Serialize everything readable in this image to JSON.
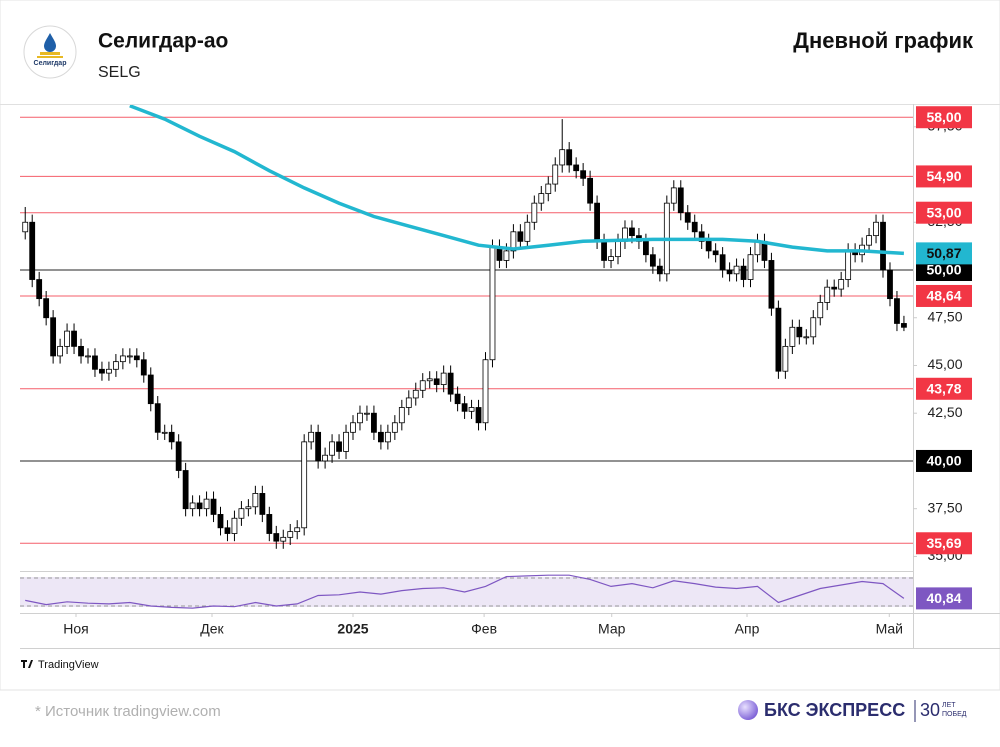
{
  "header": {
    "logo_text": "Селигдар",
    "title": "Селигдар-ао",
    "ticker": "SELG",
    "chart_label": "Дневной график"
  },
  "chart_data": {
    "type": "candlestick",
    "xlim": [
      -0.75,
      127.3
    ],
    "ylim": [
      34.29,
      58.64
    ],
    "yticks": [
      {
        "value": 35,
        "label": "35,00"
      },
      {
        "value": 37.5,
        "label": "37,50"
      },
      {
        "value": 42.5,
        "label": "42,50"
      },
      {
        "value": 45,
        "label": "45,00"
      },
      {
        "value": 47.5,
        "label": "47,50"
      },
      {
        "value": 52.5,
        "label": "52,50"
      },
      {
        "value": 57.5,
        "label": "57,50"
      }
    ],
    "xticks": [
      {
        "value": 7.28,
        "label": "Ноя"
      },
      {
        "value": 26.78,
        "label": "Дек"
      },
      {
        "value": 47.0,
        "label": "2025"
      },
      {
        "value": 65.8,
        "label": "Фев"
      },
      {
        "value": 84.1,
        "label": "Мар"
      },
      {
        "value": 103.5,
        "label": "Апр"
      },
      {
        "value": 123.9,
        "label": "Май"
      }
    ],
    "candles": {
      "up_color": "#ffffff",
      "down_color": "#000000",
      "x": [
        0,
        1,
        2,
        3,
        4,
        5,
        6,
        7,
        8,
        9,
        10,
        11,
        12,
        13,
        14,
        15,
        16,
        17,
        18,
        19,
        20,
        21,
        22,
        23,
        24,
        25,
        26,
        27,
        28,
        29,
        30,
        31,
        32,
        33,
        34,
        35,
        36,
        37,
        38,
        39,
        40,
        41,
        42,
        43,
        44,
        45,
        46,
        47,
        48,
        49,
        50,
        51,
        52,
        53,
        54,
        55,
        56,
        57,
        58,
        59,
        60,
        61,
        62,
        63,
        64,
        65,
        66,
        67,
        68,
        69,
        70,
        71,
        72,
        73,
        74,
        75,
        76,
        77,
        78,
        79,
        80,
        81,
        82,
        83,
        84,
        85,
        86,
        87,
        88,
        89,
        90,
        91,
        92,
        93,
        94,
        95,
        96,
        97,
        98,
        99,
        100,
        101,
        102,
        103,
        104,
        105,
        106,
        107,
        108,
        109,
        110,
        111,
        112,
        113,
        114,
        115,
        116,
        117,
        118,
        119,
        120,
        121,
        122,
        123,
        124,
        125,
        126
      ],
      "open": [
        52.0,
        52.5,
        49.5,
        48.5,
        47.5,
        45.5,
        46.0,
        46.8,
        46.0,
        45.5,
        45.5,
        44.8,
        44.6,
        44.8,
        45.2,
        45.5,
        45.5,
        45.3,
        44.5,
        43.0,
        41.5,
        41.5,
        41.0,
        39.5,
        37.5,
        37.8,
        37.5,
        38.0,
        37.2,
        36.5,
        36.2,
        37.0,
        37.5,
        37.6,
        38.3,
        37.2,
        36.2,
        35.8,
        36.0,
        36.3,
        36.5,
        41.0,
        41.5,
        40.0,
        40.3,
        41.0,
        40.5,
        41.5,
        42.0,
        42.5,
        42.5,
        41.5,
        41.0,
        41.5,
        42.0,
        42.8,
        43.3,
        43.7,
        44.2,
        44.3,
        44.0,
        44.6,
        43.5,
        43.0,
        42.6,
        42.8,
        42.0,
        45.3,
        51.2,
        50.5,
        51.0,
        52.0,
        51.5,
        52.5,
        53.5,
        54.0,
        54.5,
        55.5,
        56.3,
        55.5,
        55.2,
        54.8,
        53.5,
        51.5,
        50.5,
        50.7,
        51.5,
        52.2,
        51.8,
        51.5,
        50.8,
        50.2,
        49.8,
        53.5,
        54.3,
        53.0,
        52.5,
        52.0,
        51.5,
        51.0,
        50.8,
        50.0,
        49.8,
        50.2,
        49.5,
        50.8,
        51.5,
        50.5,
        48.0,
        44.7,
        46.0,
        47.0,
        46.5,
        46.5,
        47.5,
        48.3,
        49.1,
        49.0,
        49.5,
        51.0,
        50.8,
        51.3,
        51.8,
        52.5,
        50.0,
        48.5,
        47.2
      ],
      "high": [
        53.3,
        52.9,
        49.9,
        48.9,
        47.9,
        46.4,
        47.2,
        47.2,
        46.4,
        45.9,
        45.9,
        45.2,
        45.2,
        45.6,
        45.9,
        45.9,
        45.9,
        45.7,
        44.9,
        43.4,
        41.9,
        41.9,
        41.4,
        39.9,
        38.2,
        38.2,
        38.4,
        38.4,
        37.6,
        36.9,
        37.4,
        37.9,
        38.0,
        38.7,
        38.7,
        37.6,
        36.6,
        36.4,
        36.7,
        36.9,
        41.4,
        41.9,
        41.9,
        40.7,
        41.4,
        41.4,
        41.9,
        42.4,
        42.9,
        42.9,
        42.9,
        41.9,
        41.9,
        42.4,
        43.2,
        43.7,
        44.1,
        44.6,
        44.7,
        44.7,
        45.0,
        45.0,
        43.9,
        43.4,
        43.2,
        43.2,
        45.7,
        51.6,
        51.6,
        51.4,
        52.4,
        52.4,
        52.9,
        53.9,
        54.4,
        54.9,
        55.9,
        57.9,
        56.7,
        55.9,
        55.6,
        55.2,
        53.9,
        51.9,
        51.1,
        51.9,
        52.6,
        52.6,
        52.2,
        51.9,
        51.2,
        50.6,
        53.9,
        54.7,
        54.7,
        53.4,
        52.9,
        52.4,
        51.9,
        51.4,
        51.2,
        50.4,
        50.6,
        50.6,
        51.2,
        51.9,
        51.9,
        50.9,
        48.4,
        46.4,
        47.4,
        47.4,
        46.9,
        47.9,
        48.7,
        49.5,
        49.5,
        49.9,
        51.4,
        51.4,
        51.7,
        52.2,
        52.9,
        52.9,
        50.4,
        48.9,
        47.6
      ],
      "low": [
        51.6,
        49.1,
        48.1,
        47.1,
        45.1,
        45.1,
        45.6,
        45.6,
        45.1,
        45.1,
        44.4,
        44.2,
        44.2,
        44.4,
        44.8,
        45.1,
        44.9,
        44.1,
        42.6,
        41.1,
        41.1,
        40.6,
        39.1,
        37.1,
        37.1,
        37.1,
        37.1,
        36.8,
        36.1,
        35.8,
        35.8,
        36.6,
        37.1,
        37.2,
        36.8,
        35.8,
        35.4,
        35.4,
        35.6,
        35.9,
        36.1,
        40.6,
        39.6,
        39.6,
        39.9,
        40.1,
        40.1,
        41.1,
        41.6,
        42.1,
        41.1,
        40.6,
        40.6,
        41.1,
        41.6,
        42.4,
        42.9,
        43.3,
        43.8,
        43.6,
        43.6,
        43.1,
        42.6,
        42.2,
        42.2,
        41.6,
        41.6,
        44.9,
        50.1,
        50.1,
        50.6,
        51.1,
        51.1,
        52.1,
        53.1,
        53.6,
        54.1,
        55.1,
        55.1,
        54.8,
        54.4,
        53.1,
        51.1,
        50.1,
        50.1,
        50.3,
        51.1,
        51.4,
        51.1,
        50.4,
        49.8,
        49.4,
        49.4,
        53.1,
        52.6,
        52.1,
        51.6,
        51.1,
        50.6,
        50.4,
        49.6,
        49.4,
        49.4,
        49.1,
        49.1,
        50.4,
        50.1,
        47.6,
        44.3,
        44.3,
        45.6,
        46.1,
        46.1,
        46.1,
        47.1,
        47.9,
        48.6,
        48.6,
        49.1,
        50.4,
        50.4,
        50.9,
        51.4,
        49.6,
        48.1,
        46.8,
        46.8
      ],
      "close": [
        52.5,
        49.5,
        48.5,
        47.5,
        45.5,
        46.0,
        46.8,
        46.0,
        45.5,
        45.5,
        44.8,
        44.6,
        44.8,
        45.2,
        45.5,
        45.5,
        45.3,
        44.5,
        43.0,
        41.5,
        41.5,
        41.0,
        39.5,
        37.5,
        37.8,
        37.5,
        38.0,
        37.2,
        36.5,
        36.2,
        37.0,
        37.5,
        37.6,
        38.3,
        37.2,
        36.2,
        35.8,
        36.0,
        36.3,
        36.5,
        41.0,
        41.5,
        40.0,
        40.3,
        41.0,
        40.5,
        41.5,
        42.0,
        42.5,
        42.5,
        41.5,
        41.0,
        41.5,
        42.0,
        42.8,
        43.3,
        43.7,
        44.2,
        44.3,
        44.0,
        44.6,
        43.5,
        43.0,
        42.6,
        42.8,
        42.0,
        45.3,
        51.2,
        50.5,
        51.0,
        52.0,
        51.5,
        52.5,
        53.5,
        54.0,
        54.5,
        55.5,
        56.3,
        55.5,
        55.2,
        54.8,
        53.5,
        51.5,
        50.5,
        50.7,
        51.5,
        52.2,
        51.8,
        51.5,
        50.8,
        50.2,
        49.8,
        53.5,
        54.3,
        53.0,
        52.5,
        52.0,
        51.5,
        51.0,
        50.8,
        50.0,
        49.8,
        50.2,
        49.5,
        50.8,
        51.5,
        50.5,
        48.0,
        44.7,
        46.0,
        47.0,
        46.5,
        46.5,
        47.5,
        48.3,
        49.1,
        49.0,
        49.5,
        51.0,
        50.8,
        51.3,
        51.8,
        52.5,
        50.0,
        48.5,
        47.2,
        47.0
      ]
    },
    "ma": {
      "color": "#22b7d0",
      "x": [
        15,
        20,
        25,
        30,
        35,
        40,
        45,
        50,
        55,
        60,
        65,
        70,
        75,
        80,
        90,
        100,
        105,
        110,
        115,
        120,
        126
      ],
      "values": [
        58.6,
        57.9,
        57.0,
        56.2,
        55.2,
        54.3,
        53.5,
        52.8,
        52.3,
        51.8,
        51.3,
        51.1,
        51.3,
        51.5,
        51.6,
        51.6,
        51.5,
        51.2,
        51.0,
        51.0,
        50.87
      ],
      "last_label": "50,87"
    },
    "levels": [
      {
        "value": 58,
        "label": "58,00",
        "color": "#f23645"
      },
      {
        "value": 54.9,
        "label": "54,90",
        "color": "#f23645"
      },
      {
        "value": 53,
        "label": "53,00",
        "color": "#f23645"
      },
      {
        "value": 50,
        "label": "50,00",
        "color": "#000000"
      },
      {
        "value": 48.64,
        "label": "48,64",
        "color": "#f23645"
      },
      {
        "value": 43.78,
        "label": "43,78",
        "color": "#f23645"
      },
      {
        "value": 40,
        "label": "40,00",
        "color": "#000000"
      },
      {
        "value": 35.69,
        "label": "35,69",
        "color": "#f23645"
      }
    ],
    "rsi": {
      "color": "#7e57c2",
      "ylim": [
        21.4,
        77.1
      ],
      "bands": [
        30,
        70
      ],
      "x": [
        0,
        3,
        6,
        9,
        12,
        15,
        18,
        21,
        24,
        27,
        30,
        33,
        36,
        39,
        42,
        45,
        48,
        51,
        54,
        57,
        60,
        63,
        66,
        69,
        72,
        75,
        78,
        81,
        84,
        87,
        90,
        93,
        96,
        99,
        102,
        105,
        108,
        111,
        114,
        117,
        120,
        123,
        126
      ],
      "values": [
        38,
        32,
        36,
        34,
        33,
        35,
        30,
        28,
        27,
        30,
        29,
        35,
        30,
        33,
        45,
        46,
        50,
        47,
        52,
        55,
        56,
        50,
        58,
        72,
        73,
        74,
        74,
        68,
        58,
        62,
        56,
        66,
        62,
        57,
        55,
        58,
        35,
        45,
        55,
        60,
        65,
        62,
        40.84
      ],
      "last_label": "40,84"
    }
  },
  "footer": {
    "tv": "TradingView",
    "source": "* Источник tradingview.com",
    "brand": "БКС ЭКСПРЕСС",
    "anniversary": "30",
    "anniversary_line1": "ЛЕТ",
    "anniversary_line2": "ПОБЕД"
  }
}
